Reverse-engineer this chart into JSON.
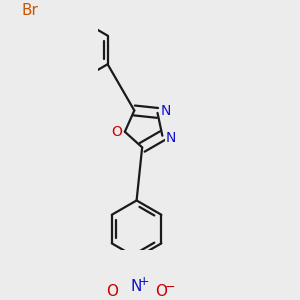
{
  "background_color": "#ececec",
  "bond_color": "#1a1a1a",
  "bond_width": 1.6,
  "N_color": "#1111cc",
  "O_color": "#cc0000",
  "Br_color": "#cc5500",
  "font_size": 10,
  "xlim": [
    -1.2,
    1.8
  ],
  "ylim": [
    -3.2,
    3.2
  ]
}
